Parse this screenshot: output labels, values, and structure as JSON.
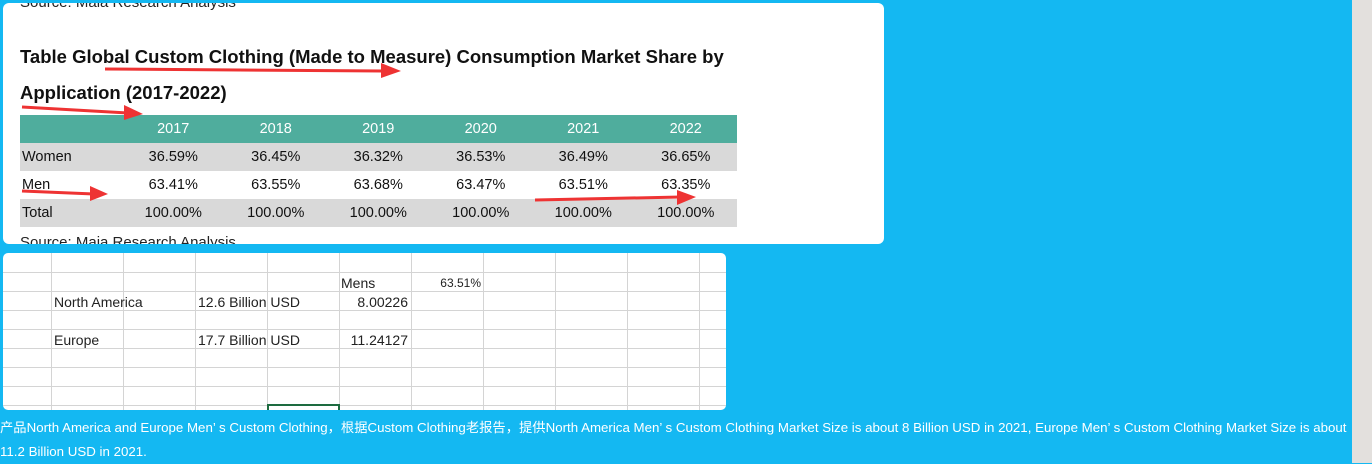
{
  "report": {
    "source_top": "Source: Maia Research Analysis",
    "title_line1": "Table Global Custom Clothing (Made to Measure) Consumption Market Share by",
    "title_line2": "Application (2017-2022)",
    "columns": [
      "",
      "2017",
      "2018",
      "2019",
      "2020",
      "2021",
      "2022"
    ],
    "rows": [
      {
        "label": "Women",
        "values": [
          "36.59%",
          "36.45%",
          "36.32%",
          "36.53%",
          "36.49%",
          "36.65%"
        ]
      },
      {
        "label": "Men",
        "values": [
          "63.41%",
          "63.55%",
          "63.68%",
          "63.47%",
          "63.51%",
          "63.35%"
        ]
      },
      {
        "label": "Total",
        "values": [
          "100.00%",
          "100.00%",
          "100.00%",
          "100.00%",
          "100.00%",
          "100.00%"
        ]
      }
    ],
    "source_bottom": "Source: Maia Research Analysis",
    "arrow_color": "#ee3333"
  },
  "sheet": {
    "mens_label": "Mens",
    "mens_share": "63.51%",
    "rows": [
      {
        "region": "North America",
        "size": "12.6 Billion USD",
        "value": "8.00226"
      },
      {
        "region": "Europe",
        "size": "17.7 Billion USD",
        "value": "11.24127"
      }
    ]
  },
  "caption": "产品North America and Europe Men’ s Custom Clothing，根据Custom Clothing老报告，提供North America Men’ s Custom Clothing Market Size is about 8 Billion USD in 2021, Europe Men’ s Custom Clothing Market Size is about 11.2 Billion USD in 2021.",
  "colors": {
    "background": "#14b8f2",
    "table_header": "#4fad9d",
    "shaded_row": "#d9d9d9"
  }
}
